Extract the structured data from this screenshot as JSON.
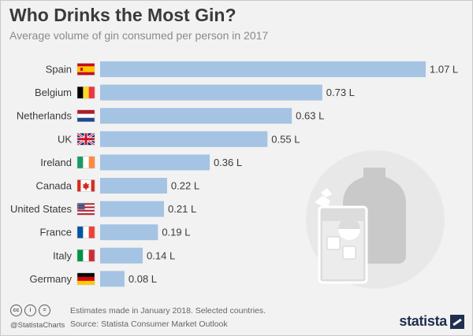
{
  "header": {
    "title": "Who Drinks the Most Gin?",
    "subtitle": "Average volume of gin consumed per person in 2017"
  },
  "chart_data": {
    "type": "bar",
    "orientation": "horizontal",
    "categories": [
      "Spain",
      "Belgium",
      "Netherlands",
      "UK",
      "Ireland",
      "Canada",
      "United States",
      "France",
      "Italy",
      "Germany"
    ],
    "values": [
      1.07,
      0.73,
      0.63,
      0.55,
      0.36,
      0.22,
      0.21,
      0.19,
      0.14,
      0.08
    ],
    "value_labels": [
      "1.07 L",
      "0.73 L",
      "0.63 L",
      "0.55 L",
      "0.36 L",
      "0.22 L",
      "0.21 L",
      "0.19 L",
      "0.14 L",
      "0.08 L"
    ],
    "unit": "L",
    "xlim": [
      0,
      1.07
    ],
    "grid": false,
    "bar_color": "#a5c3e3"
  },
  "flags": [
    "flag-spain-icon",
    "flag-belgium-icon",
    "flag-netherlands-icon",
    "flag-uk-icon",
    "flag-ireland-icon",
    "flag-canada-icon",
    "flag-usa-icon",
    "flag-france-icon",
    "flag-italy-icon",
    "flag-germany-icon"
  ],
  "footer": {
    "license_icons": [
      "cc-icon",
      "attribution-icon",
      "no-derivatives-icon"
    ],
    "handle": "@StatistaCharts",
    "note": "Estimates made in January 2018. Selected countries.",
    "source": "Source: Statista Consumer Market Outlook",
    "logo": "statista"
  },
  "colors": {
    "background": "#f2f2f2",
    "title": "#3a3a3a",
    "subtitle": "#8a8a8a",
    "logo": "#1f2f4f"
  }
}
